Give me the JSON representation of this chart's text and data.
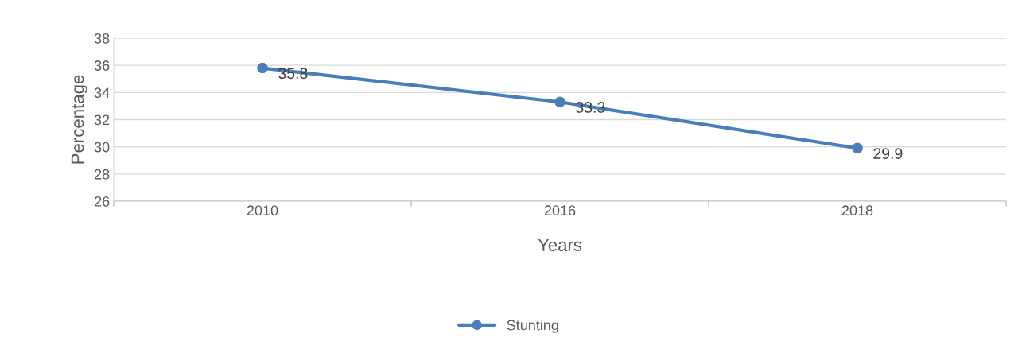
{
  "chart_data": {
    "type": "line",
    "xlabel": "Years",
    "ylabel": "Percentage",
    "categories": [
      "2010",
      "2016",
      "2018"
    ],
    "series": [
      {
        "name": "Stunting",
        "color": "#4a7ebb",
        "values": [
          35.8,
          33.3,
          29.9
        ]
      }
    ],
    "ylim": [
      26,
      38
    ],
    "yticks": [
      26,
      28,
      30,
      32,
      34,
      36,
      38
    ],
    "grid": "y",
    "legend": "bottom",
    "marker": "circle",
    "line_style": "solid",
    "data_labels": true
  }
}
